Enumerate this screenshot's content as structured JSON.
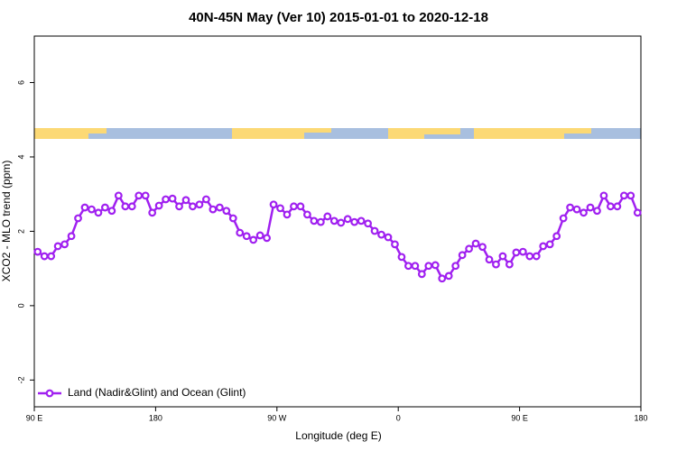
{
  "chart_data": {
    "type": "line",
    "title": "40N-45N May (Ver 10)   2015-01-01 to 2020-12-18",
    "xlabel": "Longitude (deg E)",
    "ylabel": "XCO2 - MLO trend (ppm)",
    "xlim": [
      90,
      540
    ],
    "ylim": [
      -2.72,
      7.25
    ],
    "xticks": [
      {
        "value": 90,
        "label": "90 E"
      },
      {
        "value": 180,
        "label": "180"
      },
      {
        "value": 270,
        "label": "90 W"
      },
      {
        "value": 360,
        "label": "0"
      },
      {
        "value": 450,
        "label": "90 E"
      },
      {
        "value": 540,
        "label": "180"
      }
    ],
    "yticks": [
      -2,
      0,
      2,
      4,
      6
    ],
    "legend": "bottom-left",
    "x": [
      92.5,
      97.5,
      102.5,
      107.5,
      112.5,
      117.5,
      122.5,
      127.5,
      132.5,
      137.5,
      142.5,
      147.5,
      152.5,
      157.5,
      162.5,
      167.5,
      172.5,
      177.5,
      182.5,
      187.5,
      192.5,
      197.5,
      202.5,
      207.5,
      212.5,
      217.5,
      222.5,
      227.5,
      232.5,
      237.5,
      242.5,
      247.5,
      252.5,
      257.5,
      262.5,
      267.5,
      272.5,
      277.5,
      282.5,
      287.5,
      292.5,
      297.5,
      302.5,
      307.5,
      312.5,
      317.5,
      322.5,
      327.5,
      332.5,
      337.5,
      342.5,
      347.5,
      352.5,
      357.5,
      362.5,
      367.5,
      372.5,
      377.5,
      382.5,
      387.5,
      392.5,
      397.5,
      402.5,
      407.5,
      412.5,
      417.5,
      422.5,
      427.5,
      432.5,
      437.5,
      442.5,
      447.5,
      452.5,
      457.5,
      462.5,
      467.5,
      472.5,
      477.5,
      482.5,
      487.5,
      492.5,
      497.5,
      502.5,
      507.5,
      512.5,
      517.5,
      522.5,
      527.5,
      532.5,
      537.5
    ],
    "series": [
      {
        "name": "Land (Nadir&Glint) and Ocean (Glint)",
        "color": "#a020f0",
        "values": [
          1.45,
          1.33,
          1.33,
          1.6,
          1.65,
          1.87,
          2.35,
          2.64,
          2.59,
          2.5,
          2.64,
          2.55,
          2.96,
          2.67,
          2.67,
          2.96,
          2.96,
          2.5,
          2.69,
          2.86,
          2.88,
          2.67,
          2.84,
          2.67,
          2.72,
          2.86,
          2.59,
          2.64,
          2.55,
          2.35,
          1.96,
          1.87,
          1.77,
          1.89,
          1.82,
          2.72,
          2.62,
          2.45,
          2.67,
          2.67,
          2.45,
          2.28,
          2.25,
          2.4,
          2.28,
          2.23,
          2.33,
          2.25,
          2.28,
          2.21,
          2.01,
          1.91,
          1.84,
          1.65,
          1.31,
          1.07,
          1.07,
          0.85,
          1.07,
          1.09,
          0.73,
          0.8,
          1.07,
          1.36,
          1.53,
          1.67,
          1.58,
          1.24,
          1.11,
          1.33,
          1.11,
          1.43,
          1.45,
          1.33,
          1.33,
          1.6,
          1.65,
          1.87,
          2.35,
          2.64,
          2.59,
          2.5,
          2.64,
          2.55,
          2.96,
          2.67,
          2.67,
          2.96,
          2.96,
          2.5
        ]
      }
    ]
  }
}
